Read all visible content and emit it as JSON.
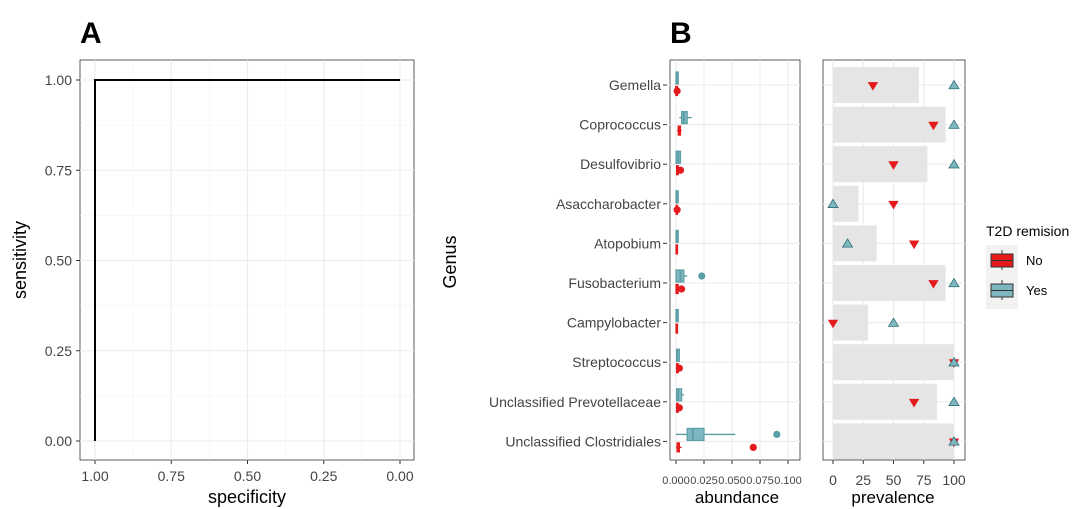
{
  "panel_a": {
    "letter": "A",
    "chart_data": {
      "type": "line",
      "xlabel": "specificity",
      "ylabel": "sensitivity",
      "x_ticks": [
        "1.00",
        "0.75",
        "0.50",
        "0.25",
        "0.00"
      ],
      "y_ticks": [
        "0.00",
        "0.25",
        "0.50",
        "0.75",
        "1.00"
      ],
      "xlim": [
        1.0,
        0.0
      ],
      "ylim": [
        0.0,
        1.0
      ],
      "x_reversed": true,
      "grid": true,
      "series": [
        {
          "x": [
            1.0,
            1.0,
            0.0
          ],
          "y": [
            0.0,
            1.0,
            1.0
          ]
        }
      ]
    }
  },
  "panel_b": {
    "letter": "B",
    "chart_data": {
      "type": "boxplot+bar",
      "ylabel": "Genus",
      "genera": [
        "Gemella",
        "Coprococcus",
        "Desulfovibrio",
        "Asaccharobacter",
        "Atopobium",
        "Fusobacterium",
        "Campylobacter",
        "Streptococcus",
        "Unclassified Prevotellaceae",
        "Unclassified Clostridiales"
      ],
      "abundance": {
        "xlabel": "abundance",
        "x_ticks": [
          "0.000",
          "0.025",
          "0.050",
          "0.075",
          "0.100"
        ],
        "xlim": [
          0.0,
          0.1
        ],
        "no": [
          {
            "q1": 0.0,
            "med": 0.0,
            "q3": 0.001,
            "whislo": 0.0,
            "whishi": 0.001,
            "out": [
              0.001
            ]
          },
          {
            "q1": 0.002,
            "med": 0.003,
            "q3": 0.004,
            "whislo": 0.001,
            "whishi": 0.005,
            "out": []
          },
          {
            "q1": 0.0005,
            "med": 0.001,
            "q3": 0.002,
            "whislo": 0.0,
            "whishi": 0.003,
            "out": [
              0.004
            ]
          },
          {
            "q1": 0.0,
            "med": 0.0005,
            "q3": 0.001,
            "whislo": 0.0,
            "whishi": 0.002,
            "out": [
              0.001
            ]
          },
          {
            "q1": 0.0,
            "med": 0.0005,
            "q3": 0.001,
            "whislo": 0.0,
            "whishi": 0.001,
            "out": []
          },
          {
            "q1": 0.0,
            "med": 0.001,
            "q3": 0.002,
            "whislo": 0.0,
            "whishi": 0.004,
            "out": [
              0.005
            ]
          },
          {
            "q1": 0.0,
            "med": 0.0005,
            "q3": 0.001,
            "whislo": 0.0,
            "whishi": 0.001,
            "out": []
          },
          {
            "q1": 0.0005,
            "med": 0.001,
            "q3": 0.002,
            "whislo": 0.0,
            "whishi": 0.003,
            "out": [
              0.003
            ]
          },
          {
            "q1": 0.0005,
            "med": 0.001,
            "q3": 0.002,
            "whislo": 0.0,
            "whishi": 0.003,
            "out": [
              0.003
            ]
          },
          {
            "q1": 0.001,
            "med": 0.002,
            "q3": 0.003,
            "whislo": 0.0,
            "whishi": 0.005,
            "out": [
              0.069
            ]
          }
        ],
        "yes": [
          {
            "q1": 0.0,
            "med": 0.0005,
            "q3": 0.002,
            "whislo": 0.0,
            "whishi": 0.002,
            "out": []
          },
          {
            "q1": 0.005,
            "med": 0.007,
            "q3": 0.01,
            "whislo": 0.003,
            "whishi": 0.014,
            "out": []
          },
          {
            "q1": 0.0,
            "med": 0.002,
            "q3": 0.004,
            "whislo": 0.0,
            "whishi": 0.004,
            "out": []
          },
          {
            "q1": 0.0,
            "med": 0.0005,
            "q3": 0.002,
            "whislo": 0.0,
            "whishi": 0.002,
            "out": []
          },
          {
            "q1": 0.0,
            "med": 0.0005,
            "q3": 0.002,
            "whislo": 0.0,
            "whishi": 0.002,
            "out": []
          },
          {
            "q1": 0.0,
            "med": 0.004,
            "q3": 0.007,
            "whislo": 0.0,
            "whishi": 0.01,
            "out": [
              0.023
            ]
          },
          {
            "q1": 0.0,
            "med": 0.0005,
            "q3": 0.002,
            "whislo": 0.0,
            "whishi": 0.002,
            "out": []
          },
          {
            "q1": 0.0005,
            "med": 0.001,
            "q3": 0.003,
            "whislo": 0.0,
            "whishi": 0.003,
            "out": []
          },
          {
            "q1": 0.0005,
            "med": 0.002,
            "q3": 0.005,
            "whislo": 0.0,
            "whishi": 0.007,
            "out": []
          },
          {
            "q1": 0.01,
            "med": 0.015,
            "q3": 0.025,
            "whislo": 0.0,
            "whishi": 0.053,
            "out": [
              0.09
            ]
          }
        ]
      },
      "prevalence": {
        "xlabel": "prevalence",
        "x_ticks": [
          "0",
          "25",
          "50",
          "75",
          "100"
        ],
        "xlim": [
          0,
          100
        ],
        "bar": [
          71,
          93,
          78,
          21,
          36,
          93,
          29,
          100,
          86,
          100
        ],
        "no": [
          33,
          83,
          50,
          50,
          67,
          83,
          0,
          100,
          67,
          100
        ],
        "yes": [
          100,
          100,
          100,
          0,
          12,
          100,
          50,
          100,
          100,
          100
        ]
      },
      "legend": {
        "title": "T2D remision",
        "items": [
          {
            "label": "No",
            "color": "#e41a1c"
          },
          {
            "label": "Yes",
            "color": "#5b9ea6"
          }
        ]
      },
      "colors": {
        "no": "#e41a1c",
        "yes": "#5b9ea6",
        "yes_fill": "#7fb7c0",
        "bar": "#e5e5e5",
        "panel_bg": "#ffffff",
        "grid": "#ebebeb"
      }
    }
  }
}
